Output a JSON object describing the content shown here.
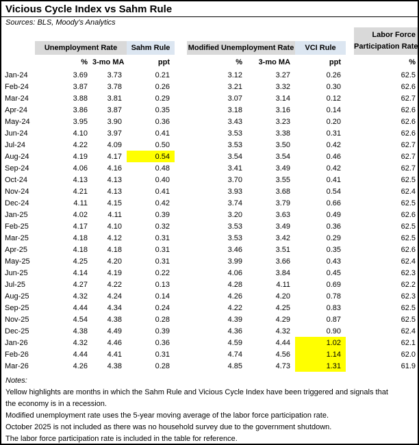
{
  "header": {
    "title": "Vicious Cycle Index vs Sahm Rule",
    "sources": "Sources: BLS, Moody's Analytics"
  },
  "table": {
    "group_headers": {
      "unemployment_rate": "Unemployment Rate",
      "sahm_rule": "Sahm Rule",
      "modified_unemployment_rate": "Modified Unemployment Rate",
      "vci_rule": "VCI Rule",
      "labor_force_line1": "Labor Force",
      "labor_force_line2": "Participation Rate"
    },
    "sub_headers": {
      "pct": "%",
      "ma": "3-mo MA",
      "ppt": "ppt"
    },
    "columns": [
      "month",
      "ur",
      "ur_ma",
      "sahm",
      "mur",
      "mur_ma",
      "vci",
      "lfpr"
    ],
    "column_meanings": {
      "month": "Month",
      "ur": "Unemployment Rate %",
      "ur_ma": "Unemployment Rate 3-mo MA",
      "sahm": "Sahm Rule ppt",
      "mur": "Modified Unemployment Rate %",
      "mur_ma": "Modified Unemployment Rate 3-mo MA",
      "vci": "VCI Rule ppt",
      "lfpr": "Labor Force Participation Rate %"
    },
    "rows": [
      {
        "month": "Jan-24",
        "ur": "3.69",
        "ur_ma": "3.73",
        "sahm": "0.21",
        "mur": "3.12",
        "mur_ma": "3.27",
        "vci": "0.26",
        "lfpr": "62.5",
        "hl": []
      },
      {
        "month": "Feb-24",
        "ur": "3.87",
        "ur_ma": "3.78",
        "sahm": "0.26",
        "mur": "3.21",
        "mur_ma": "3.32",
        "vci": "0.30",
        "lfpr": "62.6",
        "hl": []
      },
      {
        "month": "Mar-24",
        "ur": "3.88",
        "ur_ma": "3.81",
        "sahm": "0.29",
        "mur": "3.07",
        "mur_ma": "3.14",
        "vci": "0.12",
        "lfpr": "62.7",
        "hl": []
      },
      {
        "month": "Apr-24",
        "ur": "3.86",
        "ur_ma": "3.87",
        "sahm": "0.35",
        "mur": "3.18",
        "mur_ma": "3.16",
        "vci": "0.14",
        "lfpr": "62.6",
        "hl": []
      },
      {
        "month": "May-24",
        "ur": "3.95",
        "ur_ma": "3.90",
        "sahm": "0.36",
        "mur": "3.43",
        "mur_ma": "3.23",
        "vci": "0.20",
        "lfpr": "62.6",
        "hl": []
      },
      {
        "month": "Jun-24",
        "ur": "4.10",
        "ur_ma": "3.97",
        "sahm": "0.41",
        "mur": "3.53",
        "mur_ma": "3.38",
        "vci": "0.31",
        "lfpr": "62.6",
        "hl": []
      },
      {
        "month": "Jul-24",
        "ur": "4.22",
        "ur_ma": "4.09",
        "sahm": "0.50",
        "mur": "3.53",
        "mur_ma": "3.50",
        "vci": "0.42",
        "lfpr": "62.7",
        "hl": []
      },
      {
        "month": "Aug-24",
        "ur": "4.19",
        "ur_ma": "4.17",
        "sahm": "0.54",
        "mur": "3.54",
        "mur_ma": "3.54",
        "vci": "0.46",
        "lfpr": "62.7",
        "hl": [
          "sahm"
        ]
      },
      {
        "month": "Sep-24",
        "ur": "4.06",
        "ur_ma": "4.16",
        "sahm": "0.48",
        "mur": "3.41",
        "mur_ma": "3.49",
        "vci": "0.42",
        "lfpr": "62.7",
        "hl": []
      },
      {
        "month": "Oct-24",
        "ur": "4.13",
        "ur_ma": "4.13",
        "sahm": "0.40",
        "mur": "3.70",
        "mur_ma": "3.55",
        "vci": "0.41",
        "lfpr": "62.5",
        "hl": []
      },
      {
        "month": "Nov-24",
        "ur": "4.21",
        "ur_ma": "4.13",
        "sahm": "0.41",
        "mur": "3.93",
        "mur_ma": "3.68",
        "vci": "0.54",
        "lfpr": "62.4",
        "hl": []
      },
      {
        "month": "Dec-24",
        "ur": "4.11",
        "ur_ma": "4.15",
        "sahm": "0.42",
        "mur": "3.74",
        "mur_ma": "3.79",
        "vci": "0.66",
        "lfpr": "62.5",
        "hl": []
      },
      {
        "month": "Jan-25",
        "ur": "4.02",
        "ur_ma": "4.11",
        "sahm": "0.39",
        "mur": "3.20",
        "mur_ma": "3.63",
        "vci": "0.49",
        "lfpr": "62.6",
        "hl": []
      },
      {
        "month": "Feb-25",
        "ur": "4.17",
        "ur_ma": "4.10",
        "sahm": "0.32",
        "mur": "3.53",
        "mur_ma": "3.49",
        "vci": "0.36",
        "lfpr": "62.5",
        "hl": []
      },
      {
        "month": "Mar-25",
        "ur": "4.18",
        "ur_ma": "4.12",
        "sahm": "0.31",
        "mur": "3.53",
        "mur_ma": "3.42",
        "vci": "0.29",
        "lfpr": "62.5",
        "hl": []
      },
      {
        "month": "Apr-25",
        "ur": "4.18",
        "ur_ma": "4.18",
        "sahm": "0.31",
        "mur": "3.46",
        "mur_ma": "3.51",
        "vci": "0.35",
        "lfpr": "62.6",
        "hl": []
      },
      {
        "month": "May-25",
        "ur": "4.25",
        "ur_ma": "4.20",
        "sahm": "0.31",
        "mur": "3.99",
        "mur_ma": "3.66",
        "vci": "0.43",
        "lfpr": "62.4",
        "hl": []
      },
      {
        "month": "Jun-25",
        "ur": "4.14",
        "ur_ma": "4.19",
        "sahm": "0.22",
        "mur": "4.06",
        "mur_ma": "3.84",
        "vci": "0.45",
        "lfpr": "62.3",
        "hl": []
      },
      {
        "month": "Jul-25",
        "ur": "4.27",
        "ur_ma": "4.22",
        "sahm": "0.13",
        "mur": "4.28",
        "mur_ma": "4.11",
        "vci": "0.69",
        "lfpr": "62.2",
        "hl": []
      },
      {
        "month": "Aug-25",
        "ur": "4.32",
        "ur_ma": "4.24",
        "sahm": "0.14",
        "mur": "4.26",
        "mur_ma": "4.20",
        "vci": "0.78",
        "lfpr": "62.3",
        "hl": []
      },
      {
        "month": "Sep-25",
        "ur": "4.44",
        "ur_ma": "4.34",
        "sahm": "0.24",
        "mur": "4.22",
        "mur_ma": "4.25",
        "vci": "0.83",
        "lfpr": "62.5",
        "hl": []
      },
      {
        "month": "Nov-25",
        "ur": "4.54",
        "ur_ma": "4.38",
        "sahm": "0.28",
        "mur": "4.39",
        "mur_ma": "4.29",
        "vci": "0.87",
        "lfpr": "62.5",
        "hl": []
      },
      {
        "month": "Dec-25",
        "ur": "4.38",
        "ur_ma": "4.49",
        "sahm": "0.39",
        "mur": "4.36",
        "mur_ma": "4.32",
        "vci": "0.90",
        "lfpr": "62.4",
        "hl": []
      },
      {
        "month": "Jan-26",
        "ur": "4.32",
        "ur_ma": "4.46",
        "sahm": "0.36",
        "mur": "4.59",
        "mur_ma": "4.44",
        "vci": "1.02",
        "lfpr": "62.1",
        "hl": [
          "vci"
        ]
      },
      {
        "month": "Feb-26",
        "ur": "4.44",
        "ur_ma": "4.41",
        "sahm": "0.31",
        "mur": "4.74",
        "mur_ma": "4.56",
        "vci": "1.14",
        "lfpr": "62.0",
        "hl": [
          "vci"
        ]
      },
      {
        "month": "Mar-26",
        "ur": "4.26",
        "ur_ma": "4.38",
        "sahm": "0.28",
        "mur": "4.85",
        "mur_ma": "4.73",
        "vci": "1.31",
        "lfpr": "61.9",
        "hl": [
          "vci"
        ]
      }
    ]
  },
  "notes": {
    "label": "Notes:",
    "lines": [
      "Yellow highlights are months in which the Sahm Rule and Vicious Cycle Index have been triggered and signals that",
      "the economy is in a recession.",
      "Modified unemployment rate uses the 5-year moving average of the labor force participation rate.",
      "October 2025 is not included as there was no household survey due to the government shutdown.",
      "The labor force participation rate is included in the table for reference."
    ]
  },
  "colors": {
    "header_gray": "#d9d9d9",
    "header_blue": "#dce6f1",
    "highlight_yellow": "#ffff00",
    "border_black": "#000000"
  }
}
